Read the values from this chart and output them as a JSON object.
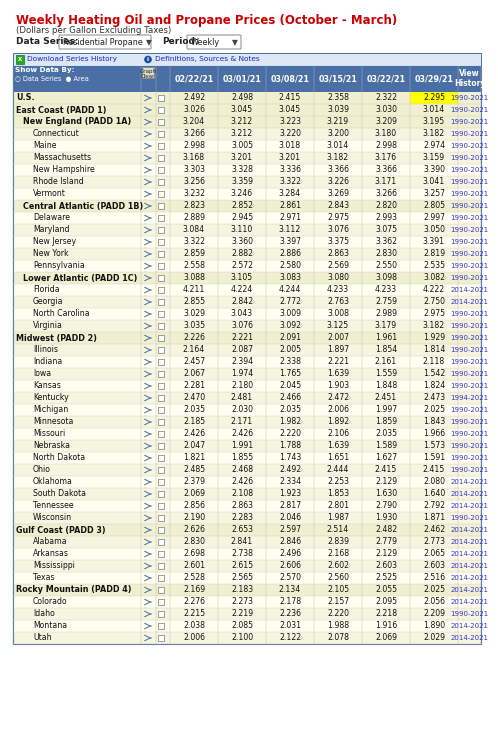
{
  "title": "Weekly Heating Oil and Propane Prices (October - March)",
  "subtitle": "(Dollars per Gallon Excluding Taxes)",
  "header_dates": [
    "02/22/21",
    "03/01/21",
    "03/08/21",
    "03/15/21",
    "03/22/21",
    "03/29/21"
  ],
  "rows": [
    {
      "label": "U.S.",
      "level": 0,
      "bold": true,
      "values": [
        2.492,
        2.498,
        2.415,
        2.358,
        2.322,
        2.295
      ],
      "history": "1990-2021",
      "highlight_last": true
    },
    {
      "label": "East Coast (PADD 1)",
      "level": 0,
      "bold": true,
      "values": [
        3.026,
        3.045,
        3.045,
        3.039,
        3.03,
        3.014
      ],
      "history": "1990-2021",
      "highlight_last": false
    },
    {
      "label": "New England (PADD 1A)",
      "level": 1,
      "bold": true,
      "values": [
        3.204,
        3.212,
        3.223,
        3.219,
        3.209,
        3.195
      ],
      "history": "1990-2021",
      "highlight_last": false
    },
    {
      "label": "Connecticut",
      "level": 2,
      "bold": false,
      "values": [
        3.266,
        3.212,
        3.22,
        3.2,
        3.18,
        3.182
      ],
      "history": "1990-2021",
      "highlight_last": false
    },
    {
      "label": "Maine",
      "level": 2,
      "bold": false,
      "values": [
        2.998,
        3.005,
        3.018,
        3.014,
        2.998,
        2.974
      ],
      "history": "1990-2021",
      "highlight_last": false
    },
    {
      "label": "Massachusetts",
      "level": 2,
      "bold": false,
      "values": [
        3.168,
        3.201,
        3.201,
        3.182,
        3.176,
        3.159
      ],
      "history": "1990-2021",
      "highlight_last": false
    },
    {
      "label": "New Hampshire",
      "level": 2,
      "bold": false,
      "values": [
        3.303,
        3.328,
        3.336,
        3.366,
        3.366,
        3.39
      ],
      "history": "1990-2021",
      "highlight_last": false
    },
    {
      "label": "Rhode Island",
      "level": 2,
      "bold": false,
      "values": [
        3.256,
        3.359,
        3.322,
        3.226,
        3.171,
        3.041
      ],
      "history": "1990-2021",
      "highlight_last": false
    },
    {
      "label": "Vermont",
      "level": 2,
      "bold": false,
      "values": [
        3.232,
        3.246,
        3.284,
        3.269,
        3.266,
        3.257
      ],
      "history": "1990-2021",
      "highlight_last": false
    },
    {
      "label": "Central Atlantic (PADD 1B)",
      "level": 1,
      "bold": true,
      "values": [
        2.823,
        2.852,
        2.861,
        2.843,
        2.82,
        2.805
      ],
      "history": "1990-2021",
      "highlight_last": false
    },
    {
      "label": "Delaware",
      "level": 2,
      "bold": false,
      "values": [
        2.889,
        2.945,
        2.971,
        2.975,
        2.993,
        2.997
      ],
      "history": "1990-2021",
      "highlight_last": false
    },
    {
      "label": "Maryland",
      "level": 2,
      "bold": false,
      "values": [
        3.084,
        3.11,
        3.112,
        3.076,
        3.075,
        3.05
      ],
      "history": "1990-2021",
      "highlight_last": false
    },
    {
      "label": "New Jersey",
      "level": 2,
      "bold": false,
      "values": [
        3.322,
        3.36,
        3.397,
        3.375,
        3.362,
        3.391
      ],
      "history": "1990-2021",
      "highlight_last": false
    },
    {
      "label": "New York",
      "level": 2,
      "bold": false,
      "values": [
        2.859,
        2.882,
        2.886,
        2.863,
        2.83,
        2.819
      ],
      "history": "1990-2021",
      "highlight_last": false
    },
    {
      "label": "Pennsylvania",
      "level": 2,
      "bold": false,
      "values": [
        2.558,
        2.572,
        2.58,
        2.569,
        2.55,
        2.535
      ],
      "history": "1990-2021",
      "highlight_last": false
    },
    {
      "label": "Lower Atlantic (PADD 1C)",
      "level": 1,
      "bold": true,
      "values": [
        3.088,
        3.105,
        3.083,
        3.08,
        3.098,
        3.082
      ],
      "history": "1990-2021",
      "highlight_last": false
    },
    {
      "label": "Florida",
      "level": 2,
      "bold": false,
      "values": [
        4.211,
        4.224,
        4.244,
        4.233,
        4.233,
        4.222
      ],
      "history": "2014-2021",
      "highlight_last": false
    },
    {
      "label": "Georgia",
      "level": 2,
      "bold": false,
      "values": [
        2.855,
        2.842,
        2.772,
        2.763,
        2.759,
        2.75
      ],
      "history": "2014-2021",
      "highlight_last": false
    },
    {
      "label": "North Carolina",
      "level": 2,
      "bold": false,
      "values": [
        3.029,
        3.043,
        3.009,
        3.008,
        2.989,
        2.975
      ],
      "history": "1990-2021",
      "highlight_last": false
    },
    {
      "label": "Virginia",
      "level": 2,
      "bold": false,
      "values": [
        3.035,
        3.076,
        3.092,
        3.125,
        3.179,
        3.182
      ],
      "history": "1990-2021",
      "highlight_last": false
    },
    {
      "label": "Midwest (PADD 2)",
      "level": 0,
      "bold": true,
      "values": [
        2.226,
        2.221,
        2.091,
        2.007,
        1.961,
        1.929
      ],
      "history": "1990-2021",
      "highlight_last": false
    },
    {
      "label": "Illinois",
      "level": 2,
      "bold": false,
      "values": [
        2.164,
        2.087,
        2.005,
        1.897,
        1.854,
        1.814
      ],
      "history": "1990-2021",
      "highlight_last": false
    },
    {
      "label": "Indiana",
      "level": 2,
      "bold": false,
      "values": [
        2.457,
        2.394,
        2.338,
        2.221,
        2.161,
        2.118
      ],
      "history": "1990-2021",
      "highlight_last": false
    },
    {
      "label": "Iowa",
      "level": 2,
      "bold": false,
      "values": [
        2.067,
        1.974,
        1.765,
        1.639,
        1.559,
        1.542
      ],
      "history": "1990-2021",
      "highlight_last": false
    },
    {
      "label": "Kansas",
      "level": 2,
      "bold": false,
      "values": [
        2.281,
        2.18,
        2.045,
        1.903,
        1.848,
        1.824
      ],
      "history": "1990-2021",
      "highlight_last": false
    },
    {
      "label": "Kentucky",
      "level": 2,
      "bold": false,
      "values": [
        2.47,
        2.481,
        2.466,
        2.472,
        2.451,
        2.473
      ],
      "history": "1994-2021",
      "highlight_last": false
    },
    {
      "label": "Michigan",
      "level": 2,
      "bold": false,
      "values": [
        2.035,
        2.03,
        2.035,
        2.006,
        1.997,
        2.025
      ],
      "history": "1990-2021",
      "highlight_last": false
    },
    {
      "label": "Minnesota",
      "level": 2,
      "bold": false,
      "values": [
        2.185,
        2.171,
        1.982,
        1.892,
        1.859,
        1.843
      ],
      "history": "1990-2021",
      "highlight_last": false
    },
    {
      "label": "Missouri",
      "level": 2,
      "bold": false,
      "values": [
        2.426,
        2.426,
        2.22,
        2.106,
        2.035,
        1.966
      ],
      "history": "1990-2021",
      "highlight_last": false
    },
    {
      "label": "Nebraska",
      "level": 2,
      "bold": false,
      "values": [
        2.047,
        1.991,
        1.788,
        1.639,
        1.589,
        1.573
      ],
      "history": "1990-2021",
      "highlight_last": false
    },
    {
      "label": "North Dakota",
      "level": 2,
      "bold": false,
      "values": [
        1.821,
        1.855,
        1.743,
        1.651,
        1.627,
        1.591
      ],
      "history": "1990-2021",
      "highlight_last": false
    },
    {
      "label": "Ohio",
      "level": 2,
      "bold": false,
      "values": [
        2.485,
        2.468,
        2.492,
        2.444,
        2.415,
        2.415
      ],
      "history": "1990-2021",
      "highlight_last": false
    },
    {
      "label": "Oklahoma",
      "level": 2,
      "bold": false,
      "values": [
        2.379,
        2.426,
        2.334,
        2.253,
        2.129,
        2.08
      ],
      "history": "2014-2021",
      "highlight_last": false
    },
    {
      "label": "South Dakota",
      "level": 2,
      "bold": false,
      "values": [
        2.069,
        2.108,
        1.923,
        1.853,
        1.63,
        1.64
      ],
      "history": "2014-2021",
      "highlight_last": false
    },
    {
      "label": "Tennessee",
      "level": 2,
      "bold": false,
      "values": [
        2.856,
        2.863,
        2.817,
        2.801,
        2.79,
        2.792
      ],
      "history": "2014-2021",
      "highlight_last": false
    },
    {
      "label": "Wisconsin",
      "level": 2,
      "bold": false,
      "values": [
        2.19,
        2.283,
        2.046,
        1.987,
        1.93,
        1.871
      ],
      "history": "1990-2021",
      "highlight_last": false
    },
    {
      "label": "Gulf Coast (PADD 3)",
      "level": 0,
      "bold": true,
      "values": [
        2.626,
        2.653,
        2.597,
        2.514,
        2.482,
        2.462
      ],
      "history": "2014-2021",
      "highlight_last": false
    },
    {
      "label": "Alabama",
      "level": 2,
      "bold": false,
      "values": [
        2.83,
        2.841,
        2.846,
        2.839,
        2.779,
        2.773
      ],
      "history": "2014-2021",
      "highlight_last": false
    },
    {
      "label": "Arkansas",
      "level": 2,
      "bold": false,
      "values": [
        2.698,
        2.738,
        2.496,
        2.168,
        2.129,
        2.065
      ],
      "history": "2014-2021",
      "highlight_last": false
    },
    {
      "label": "Mississippi",
      "level": 2,
      "bold": false,
      "values": [
        2.601,
        2.615,
        2.606,
        2.602,
        2.603,
        2.603
      ],
      "history": "2014-2021",
      "highlight_last": false
    },
    {
      "label": "Texas",
      "level": 2,
      "bold": false,
      "values": [
        2.528,
        2.565,
        2.57,
        2.56,
        2.525,
        2.516
      ],
      "history": "2014-2021",
      "highlight_last": false
    },
    {
      "label": "Rocky Mountain (PADD 4)",
      "level": 0,
      "bold": true,
      "values": [
        2.169,
        2.183,
        2.134,
        2.105,
        2.055,
        2.025
      ],
      "history": "2014-2021",
      "highlight_last": false
    },
    {
      "label": "Colorado",
      "level": 2,
      "bold": false,
      "values": [
        2.276,
        2.273,
        2.178,
        2.157,
        2.095,
        2.056
      ],
      "history": "2014-2021",
      "highlight_last": false
    },
    {
      "label": "Idaho",
      "level": 2,
      "bold": false,
      "values": [
        2.215,
        2.219,
        2.236,
        2.22,
        2.218,
        2.209
      ],
      "history": "1990-2021",
      "highlight_last": false
    },
    {
      "label": "Montana",
      "level": 2,
      "bold": false,
      "values": [
        2.038,
        2.085,
        2.031,
        1.988,
        1.916,
        1.89
      ],
      "history": "2014-2021",
      "highlight_last": false
    },
    {
      "label": "Utah",
      "level": 2,
      "bold": false,
      "values": [
        2.006,
        2.1,
        2.122,
        2.078,
        2.069,
        2.029
      ],
      "history": "2014-2021",
      "highlight_last": false
    }
  ],
  "colors": {
    "title": "#cc0000",
    "header_bg": "#4a6fa5",
    "header_text": "#ffffff",
    "highlight_cell": "#ffff00",
    "link_color": "#3333cc",
    "toolbar_bg": "#dde8f5",
    "toolbar_border": "#4a6fa5",
    "row_bold_bg": "#f0f0d0",
    "row_light_bg": "#fffff0",
    "row_mid_bg": "#f5f5e0",
    "border_light": "#cccccc",
    "text_dark": "#111111"
  }
}
